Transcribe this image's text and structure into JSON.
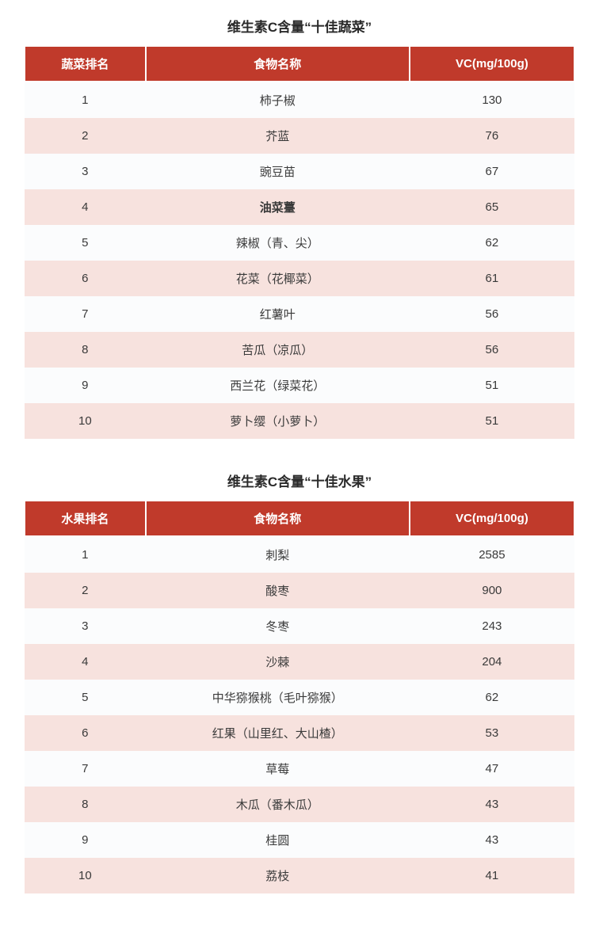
{
  "colors": {
    "header_bg": "#c03a2b",
    "header_fg": "#ffffff",
    "row_odd_bg": "#fbfcfd",
    "row_even_bg": "#f7e2de",
    "text": "#3a3a3a",
    "title": "#2a2a2a"
  },
  "column_widths_pct": {
    "rank": 22,
    "name": 48,
    "value": 30
  },
  "font_sizes_pt": {
    "title": 17,
    "body": 15
  },
  "tables": [
    {
      "title": "维生素C含量“十佳蔬菜”",
      "columns": [
        "蔬菜排名",
        "食物名称",
        "VC(mg/100g)"
      ],
      "rows": [
        {
          "rank": "1",
          "name": "柿子椒",
          "value": "130",
          "bold_name": false
        },
        {
          "rank": "2",
          "name": "芥蓝",
          "value": "76",
          "bold_name": false
        },
        {
          "rank": "3",
          "name": "豌豆苗",
          "value": "67",
          "bold_name": false
        },
        {
          "rank": "4",
          "name": "油菜薹",
          "value": "65",
          "bold_name": true
        },
        {
          "rank": "5",
          "name": "辣椒（青、尖）",
          "value": "62",
          "bold_name": false
        },
        {
          "rank": "6",
          "name": "花菜（花椰菜）",
          "value": "61",
          "bold_name": false
        },
        {
          "rank": "7",
          "name": "红薯叶",
          "value": "56",
          "bold_name": false
        },
        {
          "rank": "8",
          "name": "苦瓜（凉瓜）",
          "value": "56",
          "bold_name": false
        },
        {
          "rank": "9",
          "name": "西兰花（绿菜花）",
          "value": "51",
          "bold_name": false
        },
        {
          "rank": "10",
          "name": "萝卜缨（小萝卜）",
          "value": "51",
          "bold_name": false
        }
      ]
    },
    {
      "title": "维生素C含量“十佳水果”",
      "columns": [
        "水果排名",
        "食物名称",
        "VC(mg/100g)"
      ],
      "rows": [
        {
          "rank": "1",
          "name": "刺梨",
          "value": "2585",
          "bold_name": false
        },
        {
          "rank": "2",
          "name": "酸枣",
          "value": "900",
          "bold_name": false
        },
        {
          "rank": "3",
          "name": "冬枣",
          "value": "243",
          "bold_name": false
        },
        {
          "rank": "4",
          "name": "沙棘",
          "value": "204",
          "bold_name": false
        },
        {
          "rank": "5",
          "name": "中华猕猴桃（毛叶猕猴）",
          "value": "62",
          "bold_name": false
        },
        {
          "rank": "6",
          "name": "红果（山里红、大山楂）",
          "value": "53",
          "bold_name": false
        },
        {
          "rank": "7",
          "name": "草莓",
          "value": "47",
          "bold_name": false
        },
        {
          "rank": "8",
          "name": "木瓜（番木瓜）",
          "value": "43",
          "bold_name": false
        },
        {
          "rank": "9",
          "name": "桂圆",
          "value": "43",
          "bold_name": false
        },
        {
          "rank": "10",
          "name": "荔枝",
          "value": "41",
          "bold_name": false
        }
      ]
    }
  ]
}
